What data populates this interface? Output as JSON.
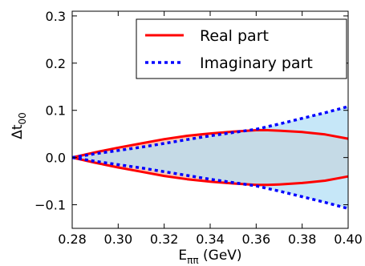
{
  "chart_data": {
    "type": "line",
    "xlabel": "E",
    "xlabel_subscript": "ππ",
    "xlabel_unit": " (GeV)",
    "ylabel": "Δt",
    "ylabel_subscript": "00",
    "xlim": [
      0.28,
      0.4
    ],
    "ylim": [
      -0.15,
      0.31
    ],
    "x_ticks": [
      "0.28",
      "0.30",
      "0.32",
      "0.34",
      "0.36",
      "0.38",
      "0.40"
    ],
    "y_ticks": [
      "−0.1",
      "0.0",
      "0.1",
      "0.2",
      "0.3"
    ],
    "x_tick_values": [
      0.28,
      0.3,
      0.32,
      0.34,
      0.36,
      0.38,
      0.4
    ],
    "y_tick_values": [
      -0.1,
      0.0,
      0.1,
      0.2,
      0.3
    ],
    "grid": false,
    "legend_position": "top-right",
    "series": [
      {
        "name": "Real part",
        "style": "solid",
        "color": "#ff0000",
        "band_color": "#f9c9b5",
        "x": [
          0.28,
          0.29,
          0.3,
          0.31,
          0.32,
          0.33,
          0.34,
          0.35,
          0.36,
          0.365,
          0.37,
          0.38,
          0.39,
          0.4
        ],
        "upper": [
          0.0,
          0.011,
          0.021,
          0.03,
          0.039,
          0.046,
          0.051,
          0.055,
          0.058,
          0.058,
          0.057,
          0.054,
          0.049,
          0.04
        ],
        "lower": [
          0.0,
          -0.011,
          -0.021,
          -0.03,
          -0.039,
          -0.046,
          -0.051,
          -0.055,
          -0.058,
          -0.058,
          -0.057,
          -0.054,
          -0.049,
          -0.04
        ]
      },
      {
        "name": "Imaginary part",
        "style": "dotted",
        "color": "#0000ff",
        "band_color": "#b3dff5",
        "x": [
          0.28,
          0.29,
          0.3,
          0.31,
          0.32,
          0.33,
          0.34,
          0.35,
          0.36,
          0.37,
          0.38,
          0.39,
          0.4
        ],
        "upper": [
          0.0,
          0.008,
          0.015,
          0.022,
          0.03,
          0.038,
          0.046,
          0.053,
          0.06,
          0.071,
          0.083,
          0.095,
          0.108
        ],
        "lower": [
          0.0,
          -0.008,
          -0.015,
          -0.022,
          -0.03,
          -0.038,
          -0.046,
          -0.053,
          -0.06,
          -0.071,
          -0.083,
          -0.095,
          -0.108
        ]
      }
    ]
  }
}
